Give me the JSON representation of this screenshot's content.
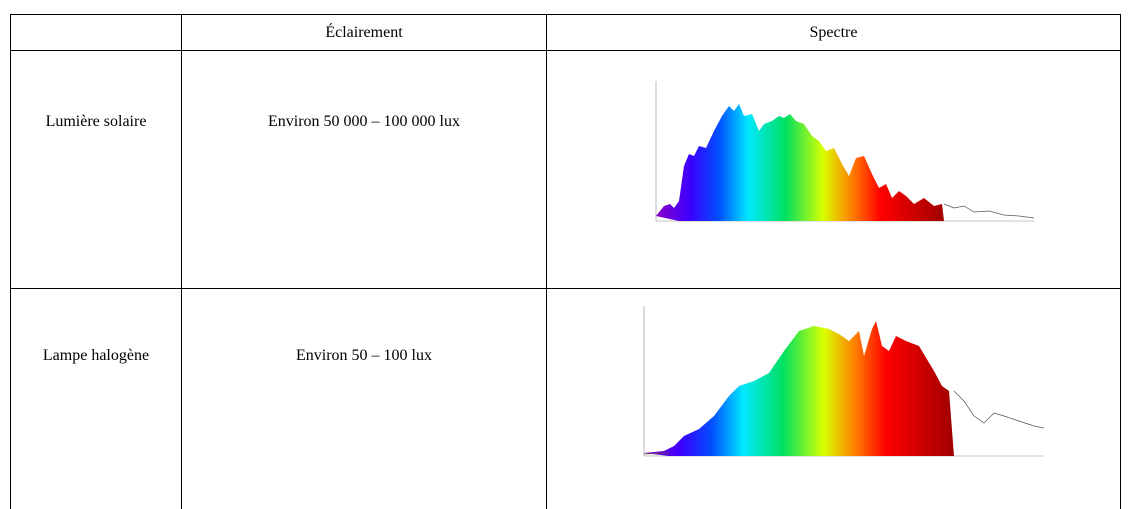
{
  "table": {
    "header": [
      "Éclairement",
      "Spectre"
    ],
    "rows": [
      [
        "Lumière solaire",
        "Environ 50 000 – 100 000 lux"
      ],
      [
        "Lampe halogène",
        "Environ 50 – 100 lux"
      ]
    ]
  }
}
